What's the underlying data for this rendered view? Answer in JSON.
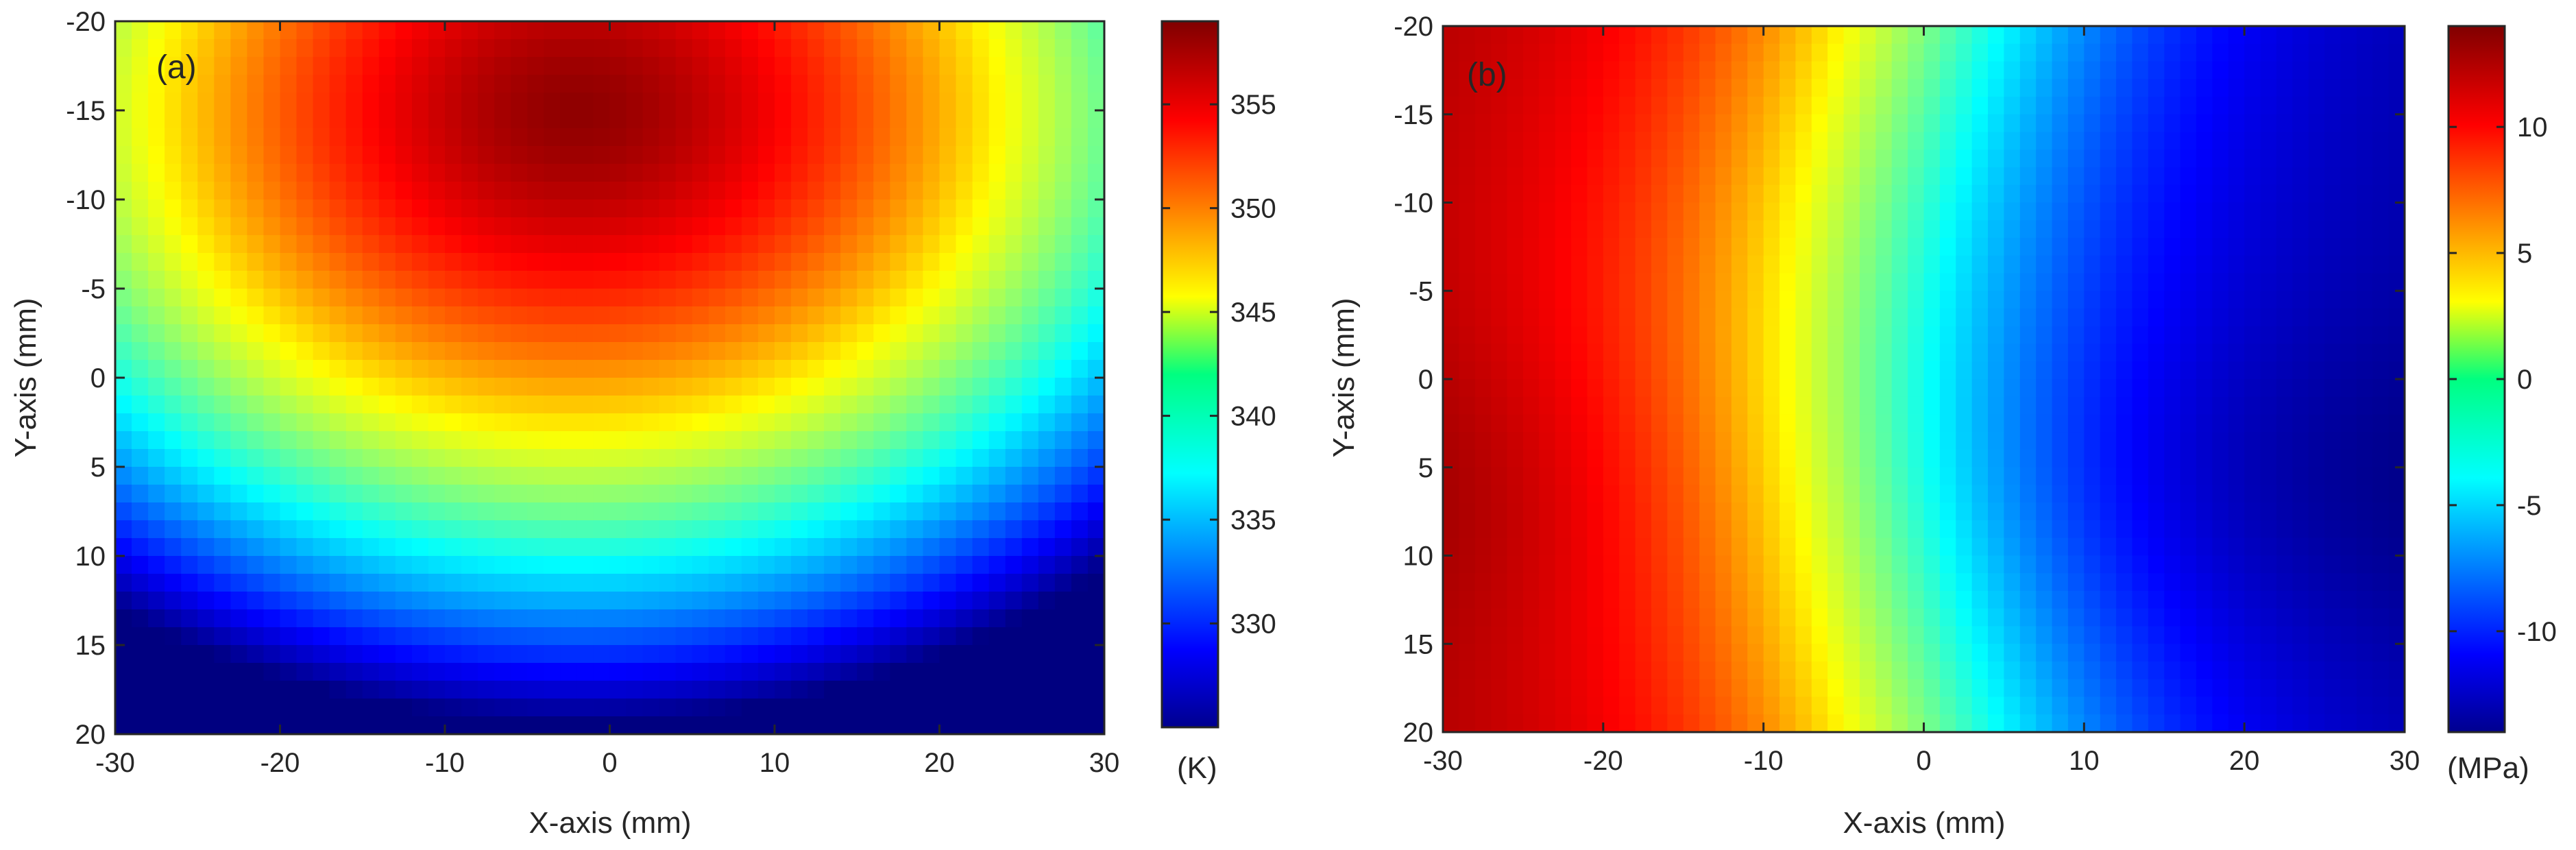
{
  "chart_data": [
    {
      "type": "heatmap",
      "panel_label": "(a)",
      "xlabel": "X-axis (mm)",
      "ylabel": "Y-axis (mm)",
      "xlim": [
        -30,
        30
      ],
      "ylim": [
        -20,
        20
      ],
      "y_reversed": true,
      "xticks": [
        -30,
        -20,
        -10,
        0,
        10,
        20,
        30
      ],
      "yticks": [
        -20,
        -15,
        -10,
        -5,
        0,
        5,
        10,
        15,
        20
      ],
      "xtick_labels": [
        "-30",
        "-20",
        "-10",
        "0",
        "10",
        "20",
        "30"
      ],
      "ytick_labels": [
        "-20",
        "-15",
        "-10",
        "-5",
        "0",
        "5",
        "10",
        "15",
        "20"
      ],
      "colormap": "jet",
      "colorbar": {
        "unit": "(K)",
        "range": [
          325,
          359
        ],
        "ticks": [
          330,
          335,
          340,
          345,
          350,
          355
        ],
        "tick_labels": [
          "330",
          "335",
          "340",
          "345",
          "350",
          "355"
        ]
      },
      "field": {
        "description_model": "radial temperature field",
        "center_xy": [
          -2,
          -15
        ],
        "peak_value": 358.5,
        "radius_x": 48,
        "radius_y": 34,
        "edge_value": 325.5
      },
      "grid": false
    },
    {
      "type": "heatmap",
      "panel_label": "(b)",
      "xlabel": "X-axis (mm)",
      "ylabel": "Y-axis (mm)",
      "xlim": [
        -30,
        30
      ],
      "ylim": [
        -20,
        20
      ],
      "y_reversed": true,
      "xticks": [
        -30,
        -20,
        -10,
        0,
        10,
        20,
        30
      ],
      "yticks": [
        -20,
        -15,
        -10,
        -5,
        0,
        5,
        10,
        15,
        20
      ],
      "xtick_labels": [
        "-30",
        "-20",
        "-10",
        "0",
        "10",
        "20",
        "30"
      ],
      "ytick_labels": [
        "-20",
        "-15",
        "-10",
        "-5",
        "0",
        "5",
        "10",
        "15",
        "20"
      ],
      "colormap": "jet",
      "colorbar": {
        "unit": "(MPa)",
        "range": [
          -14,
          14
        ],
        "ticks": [
          -10,
          -5,
          0,
          5,
          10
        ],
        "tick_labels": [
          "-10",
          "-5",
          "0",
          "5",
          "10"
        ]
      },
      "field": {
        "description_model": "lateral stress gradient",
        "left_value_at_y5": 13.5,
        "right_value_at_y5": -13.5
      },
      "grid": false
    }
  ]
}
